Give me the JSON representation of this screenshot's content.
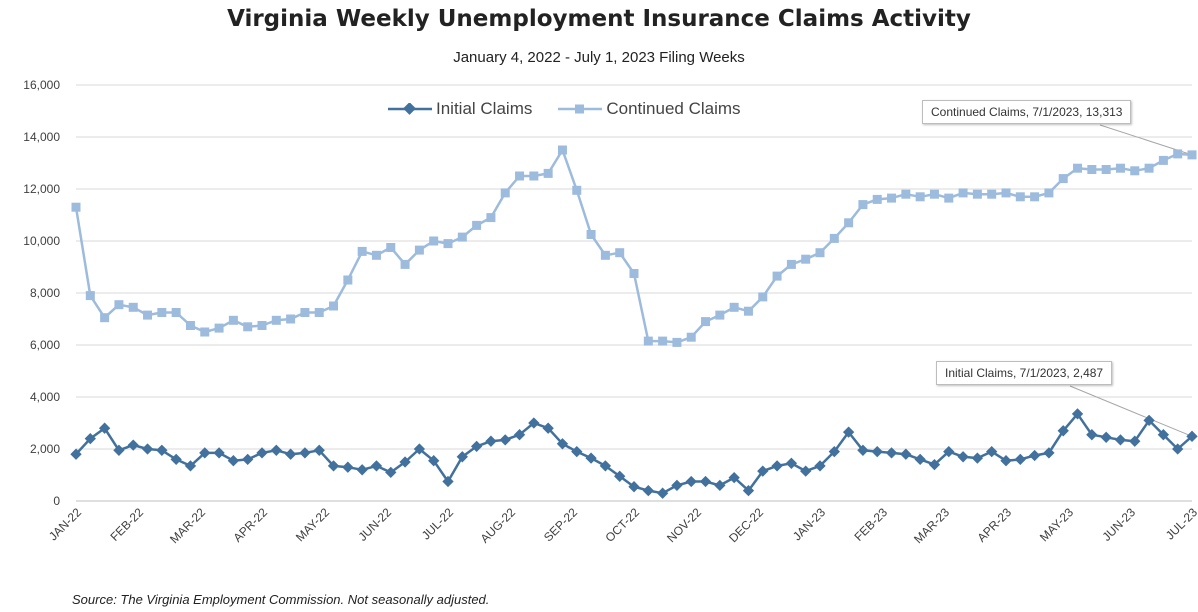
{
  "chart_data": {
    "type": "line",
    "title": "Virginia Weekly Unemployment Insurance Claims Activity",
    "subtitle": "January 4, 2022 - July 1, 2023 Filing Weeks",
    "source": "Source: The Virginia Employment Commission. Not seasonally adjusted.",
    "ylim": [
      0,
      16000
    ],
    "y_ticks": [
      "0",
      "2,000",
      "4,000",
      "6,000",
      "8,000",
      "10,000",
      "12,000",
      "14,000",
      "16,000"
    ],
    "x_tick_labels": [
      "JAN-22",
      "FEB-22",
      "MAR-22",
      "APR-22",
      "MAY-22",
      "JUN-22",
      "JUL-22",
      "AUG-22",
      "SEP-22",
      "OCT-22",
      "NOV-22",
      "DEC-22",
      "JAN-23",
      "FEB-23",
      "MAR-23",
      "APR-23",
      "MAY-23",
      "JUN-23",
      "JUL-23"
    ],
    "grid": true,
    "legend_position": "top",
    "series": [
      {
        "name": "Initial Claims",
        "color": "#41719c",
        "marker": "diamond",
        "values": [
          1800,
          2400,
          2800,
          1950,
          2150,
          2000,
          1950,
          1600,
          1350,
          1850,
          1850,
          1550,
          1600,
          1850,
          1950,
          1800,
          1850,
          1950,
          1350,
          1300,
          1200,
          1350,
          1100,
          1500,
          2000,
          1550,
          750,
          1700,
          2100,
          2300,
          2350,
          2550,
          3000,
          2800,
          2200,
          1900,
          1650,
          1350,
          950,
          550,
          400,
          300,
          600,
          750,
          750,
          600,
          900,
          400,
          1150,
          1350,
          1450,
          1150,
          1350,
          1900,
          2650,
          1950,
          1900,
          1850,
          1800,
          1600,
          1400,
          1900,
          1700,
          1650,
          1900,
          1550,
          1600,
          1750,
          1850,
          2700,
          3350,
          2550,
          2450,
          2350,
          2300,
          3100,
          2550,
          2000,
          2487
        ]
      },
      {
        "name": "Continued Claims",
        "color": "#9dbbdd",
        "marker": "square",
        "values": [
          11300,
          7900,
          7050,
          7550,
          7450,
          7150,
          7250,
          7250,
          6750,
          6500,
          6650,
          6950,
          6700,
          6750,
          6950,
          7000,
          7250,
          7250,
          7500,
          8500,
          9600,
          9450,
          9750,
          9100,
          9650,
          10000,
          9900,
          10150,
          10600,
          10900,
          11850,
          12500,
          12500,
          12600,
          13500,
          11950,
          10250,
          9450,
          9550,
          8750,
          6150,
          6150,
          6100,
          6300,
          6900,
          7150,
          7450,
          7300,
          7850,
          8650,
          9100,
          9300,
          9550,
          10100,
          10700,
          11400,
          11600,
          11650,
          11800,
          11700,
          11800,
          11650,
          11850,
          11800,
          11800,
          11850,
          11700,
          11700,
          11850,
          12400,
          12800,
          12750,
          12750,
          12800,
          12700,
          12800,
          13100,
          13350,
          13313
        ]
      }
    ],
    "annotations": [
      {
        "series": 1,
        "text": "Continued Claims, 7/1/2023, 13,313"
      },
      {
        "series": 0,
        "text": "Initial Claims, 7/1/2023, 2,487"
      }
    ]
  }
}
